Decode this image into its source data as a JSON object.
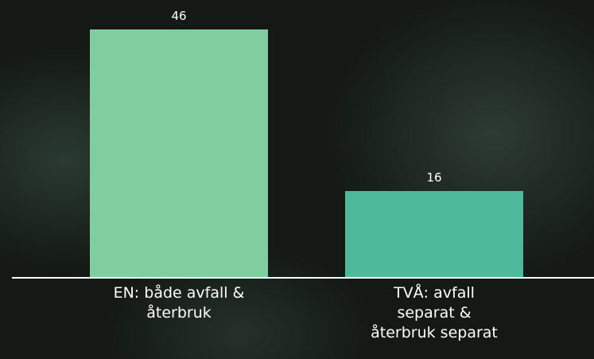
{
  "chart_data": {
    "type": "bar",
    "categories": [
      "EN: både avfall &\nåterbruk",
      "TVÅ: avfall\nseparat &\nåterbruk separat"
    ],
    "values": [
      46,
      16
    ],
    "colors": [
      "#80cd9f",
      "#4fba9b"
    ]
  }
}
